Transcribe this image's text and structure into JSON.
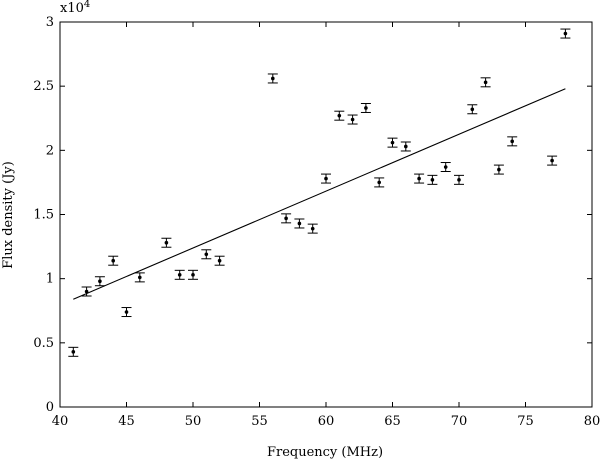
{
  "chart_data": {
    "type": "scatter",
    "title": "",
    "xlabel": "Frequency (MHz)",
    "ylabel": "Flux density (Jy)",
    "y_multiplier_label": "x10",
    "y_multiplier_exponent": "4",
    "xlim": [
      40,
      80
    ],
    "ylim": [
      0,
      3
    ],
    "x_ticks": [
      40,
      45,
      50,
      55,
      60,
      65,
      70,
      75,
      80
    ],
    "y_ticks": [
      0,
      0.5,
      1,
      1.5,
      2,
      2.5,
      3
    ],
    "x_tick_labels": [
      "40",
      "45",
      "50",
      "55",
      "60",
      "65",
      "70",
      "75",
      "80"
    ],
    "y_tick_labels": [
      "0",
      "0.5",
      "1",
      "1.5",
      "2",
      "2.5",
      "3"
    ],
    "grid": false,
    "legend": "none",
    "series": [
      {
        "style": "points-with-errorbars",
        "points": [
          {
            "x": 41,
            "y": 0.43,
            "err": 0.035
          },
          {
            "x": 42,
            "y": 0.9,
            "err": 0.035
          },
          {
            "x": 43,
            "y": 0.98,
            "err": 0.035
          },
          {
            "x": 44,
            "y": 1.14,
            "err": 0.035
          },
          {
            "x": 45,
            "y": 0.74,
            "err": 0.035
          },
          {
            "x": 46,
            "y": 1.01,
            "err": 0.035
          },
          {
            "x": 48,
            "y": 1.28,
            "err": 0.035
          },
          {
            "x": 49,
            "y": 1.03,
            "err": 0.035
          },
          {
            "x": 50,
            "y": 1.03,
            "err": 0.035
          },
          {
            "x": 51,
            "y": 1.19,
            "err": 0.035
          },
          {
            "x": 52,
            "y": 1.14,
            "err": 0.035
          },
          {
            "x": 56,
            "y": 2.56,
            "err": 0.035
          },
          {
            "x": 57,
            "y": 1.47,
            "err": 0.035
          },
          {
            "x": 58,
            "y": 1.43,
            "err": 0.035
          },
          {
            "x": 59,
            "y": 1.39,
            "err": 0.035
          },
          {
            "x": 60,
            "y": 1.78,
            "err": 0.035
          },
          {
            "x": 61,
            "y": 2.27,
            "err": 0.035
          },
          {
            "x": 62,
            "y": 2.24,
            "err": 0.035
          },
          {
            "x": 63,
            "y": 2.33,
            "err": 0.035
          },
          {
            "x": 64,
            "y": 1.75,
            "err": 0.035
          },
          {
            "x": 65,
            "y": 2.06,
            "err": 0.035
          },
          {
            "x": 66,
            "y": 2.03,
            "err": 0.035
          },
          {
            "x": 67,
            "y": 1.78,
            "err": 0.035
          },
          {
            "x": 68,
            "y": 1.77,
            "err": 0.035
          },
          {
            "x": 69,
            "y": 1.87,
            "err": 0.035
          },
          {
            "x": 70,
            "y": 1.77,
            "err": 0.035
          },
          {
            "x": 71,
            "y": 2.32,
            "err": 0.035
          },
          {
            "x": 72,
            "y": 2.53,
            "err": 0.035
          },
          {
            "x": 73,
            "y": 1.85,
            "err": 0.035
          },
          {
            "x": 74,
            "y": 2.07,
            "err": 0.035
          },
          {
            "x": 77,
            "y": 1.92,
            "err": 0.035
          },
          {
            "x": 78,
            "y": 2.91,
            "err": 0.035
          }
        ]
      },
      {
        "style": "line",
        "x": [
          41,
          78
        ],
        "y": [
          0.84,
          2.48
        ]
      }
    ]
  }
}
